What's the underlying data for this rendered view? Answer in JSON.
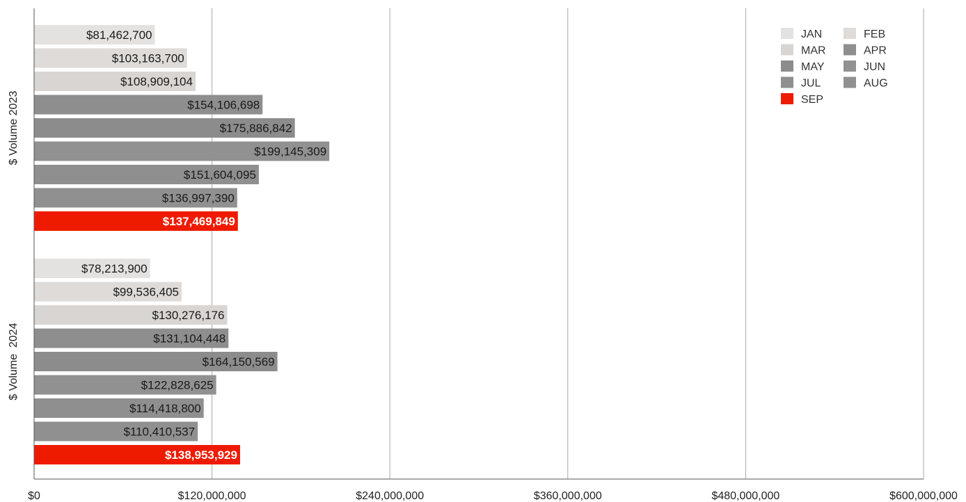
{
  "chart_data": {
    "type": "bar",
    "orientation": "horizontal",
    "xlim": [
      0,
      600000000
    ],
    "xticks": [
      {
        "value": 0,
        "label": "$0"
      },
      {
        "value": 120000000,
        "label": "$120,000,000"
      },
      {
        "value": 240000000,
        "label": "$240,000,000"
      },
      {
        "value": 360000000,
        "label": "$360,000,000"
      },
      {
        "value": 480000000,
        "label": "$480,000,000"
      },
      {
        "value": 600000000,
        "label": "$600,000,000"
      }
    ],
    "grid": "vertical",
    "legend_position": "top-right",
    "series": [
      {
        "name": "JAN",
        "color": "#e4e2e0"
      },
      {
        "name": "FEB",
        "color": "#dedbd8"
      },
      {
        "name": "MAR",
        "color": "#d9d5d2"
      },
      {
        "name": "APR",
        "color": "#8e8e8e"
      },
      {
        "name": "MAY",
        "color": "#8c8c8c"
      },
      {
        "name": "JUN",
        "color": "#919191"
      },
      {
        "name": "JUL",
        "color": "#8f8f8f"
      },
      {
        "name": "AUG",
        "color": "#909090"
      },
      {
        "name": "SEP",
        "color": "#ee1b00"
      }
    ],
    "groups": [
      {
        "name": "$ Volume 2023",
        "values": [
          81462700,
          103163700,
          108909104,
          154106698,
          175886842,
          199145309,
          151604095,
          136997390,
          137469849
        ],
        "labels": [
          "$81,462,700",
          "$103,163,700",
          "$108,909,104",
          "$154,106,698",
          "$175,886,842",
          "$199,145,309",
          "$151,604,095",
          "$136,997,390",
          "$137,469,849"
        ]
      },
      {
        "name": "$ Volume  2024",
        "values": [
          78213900,
          99536405,
          130276176,
          131104448,
          164150569,
          122828625,
          114418800,
          110410537,
          138953929
        ],
        "labels": [
          "$78,213,900",
          "$99,536,405",
          "$130,276,176",
          "$131,104,448",
          "$164,150,569",
          "$122,828,625",
          "$114,418,800",
          "$110,410,537",
          "$138,953,929"
        ]
      }
    ]
  }
}
